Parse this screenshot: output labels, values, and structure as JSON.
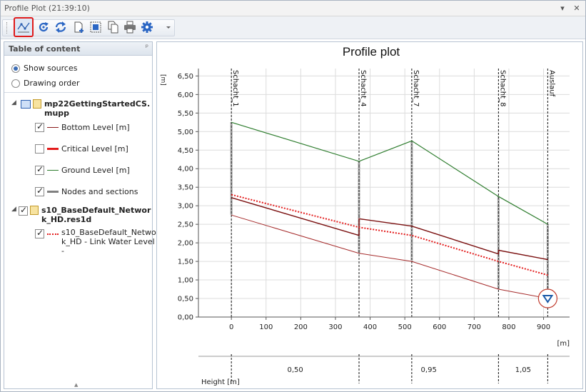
{
  "window": {
    "title": "Profile Plot (21:39:10)"
  },
  "titlebar_buttons": {
    "menu": "▾",
    "close": "✕"
  },
  "toolbar": {
    "buttons": [
      {
        "name": "profile-plot-icon",
        "active": true
      },
      {
        "name": "refresh-icon"
      },
      {
        "name": "sync-icon"
      },
      {
        "name": "add-page-icon"
      },
      {
        "name": "select-icon"
      },
      {
        "name": "copy-icon"
      },
      {
        "name": "print-icon"
      },
      {
        "name": "settings-icon"
      },
      {
        "name": "dropdown-icon"
      }
    ]
  },
  "toc": {
    "title": "Table of content",
    "pin": "ᵖ",
    "show_sources": "Show sources",
    "drawing_order": "Drawing order",
    "file1": {
      "name_line1": "mp22GettingStartedCS.",
      "name_line2": "mupp",
      "items": [
        {
          "label": "Bottom Level [m]",
          "checked": true,
          "color": "#8b1a1a"
        },
        {
          "label": "Critical Level [m]",
          "checked": false,
          "color": "#e31b1b"
        },
        {
          "label": "Ground Level [m]",
          "checked": true,
          "color": "#2e7d2e"
        },
        {
          "label": "Nodes and sections",
          "checked": true,
          "color": "#808080"
        }
      ]
    },
    "file2": {
      "name_line1": "s10_BaseDefault_Networ",
      "name_line2": "k_HD.res1d",
      "item_line1": "s10_BaseDefault_Networ",
      "item_line2": "k_HD - Link Water Level -",
      "item_color": "#e31b1b"
    }
  },
  "plot": {
    "title": "Profile plot",
    "y_unit": "[m]",
    "x_unit": "[m]",
    "footer_label": "Height [m]",
    "y_ticks": [
      "0,00",
      "0,50",
      "1,00",
      "1,50",
      "2,00",
      "2,50",
      "3,00",
      "3,50",
      "4,00",
      "4,50",
      "5,00",
      "5,50",
      "6,00",
      "6,50"
    ],
    "x_ticks": [
      "0",
      "100",
      "200",
      "300",
      "400",
      "500",
      "600",
      "700",
      "800",
      "900"
    ],
    "height_labels": [
      "0,50",
      "0,95",
      "1,05"
    ]
  },
  "chart_data": {
    "type": "line",
    "ylim": [
      0,
      6.7
    ],
    "xlim": [
      -95,
      975
    ],
    "nodes": [
      {
        "name": "Schacht_1",
        "x": 0
      },
      {
        "name": "Schacht_4",
        "x": 368
      },
      {
        "name": "Schacht_7",
        "x": 520
      },
      {
        "name": "Schacht_8",
        "x": 770
      },
      {
        "name": "Auslauf",
        "x": 912
      }
    ],
    "series": [
      {
        "key": "ground",
        "color": "#2e7d2e",
        "dashed": false,
        "width": 1.2,
        "points": [
          [
            0,
            5.25
          ],
          [
            368,
            4.2
          ],
          [
            520,
            4.75
          ],
          [
            770,
            3.25
          ],
          [
            912,
            2.5
          ]
        ]
      },
      {
        "key": "bottom",
        "color": "#a52a2a",
        "dashed": false,
        "width": 1.0,
        "points": [
          [
            0,
            2.75
          ],
          [
            368,
            1.72
          ],
          [
            520,
            1.5
          ],
          [
            770,
            0.75
          ],
          [
            912,
            0.5
          ]
        ]
      },
      {
        "key": "pipe_top",
        "color": "#7a0f0f",
        "dashed": false,
        "width": 1.4,
        "points": [
          [
            0,
            3.22
          ],
          [
            368,
            2.2
          ],
          [
            368,
            2.65
          ],
          [
            520,
            2.45
          ],
          [
            770,
            1.7
          ],
          [
            770,
            1.8
          ],
          [
            912,
            1.55
          ]
        ]
      },
      {
        "key": "water",
        "color": "#e31b1b",
        "dashed": true,
        "width": 2,
        "points": [
          [
            0,
            3.3
          ],
          [
            368,
            2.42
          ],
          [
            520,
            2.2
          ],
          [
            770,
            1.5
          ],
          [
            912,
            1.13
          ]
        ]
      }
    ],
    "outlet_marker": {
      "x": 912,
      "y": 0.5
    }
  }
}
